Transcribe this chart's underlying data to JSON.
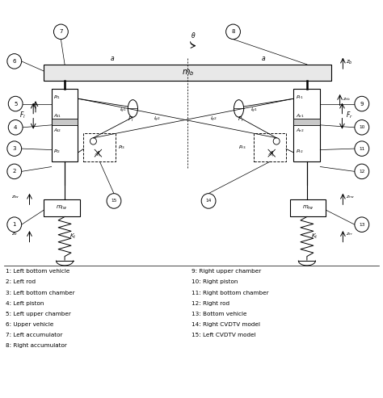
{
  "bg_color": "#ffffff",
  "fig_width": 4.74,
  "fig_height": 4.93,
  "legend_items_left": [
    "1: Left bottom vehicle",
    "2: Left rod",
    "3: Left bottom chamber",
    "4: Left piston",
    "5: Left upper chamber",
    "6: Upper vehicle",
    "7: Left accumulator",
    "8: Right accumulator"
  ],
  "legend_items_right": [
    "9: Right upper chamber",
    "10: Right piston",
    "11: Right bottom chamber",
    "12: Right rod",
    "13: Bottom vehicle",
    "14: Right CVDTV model",
    "15: Left CVDTV model"
  ]
}
